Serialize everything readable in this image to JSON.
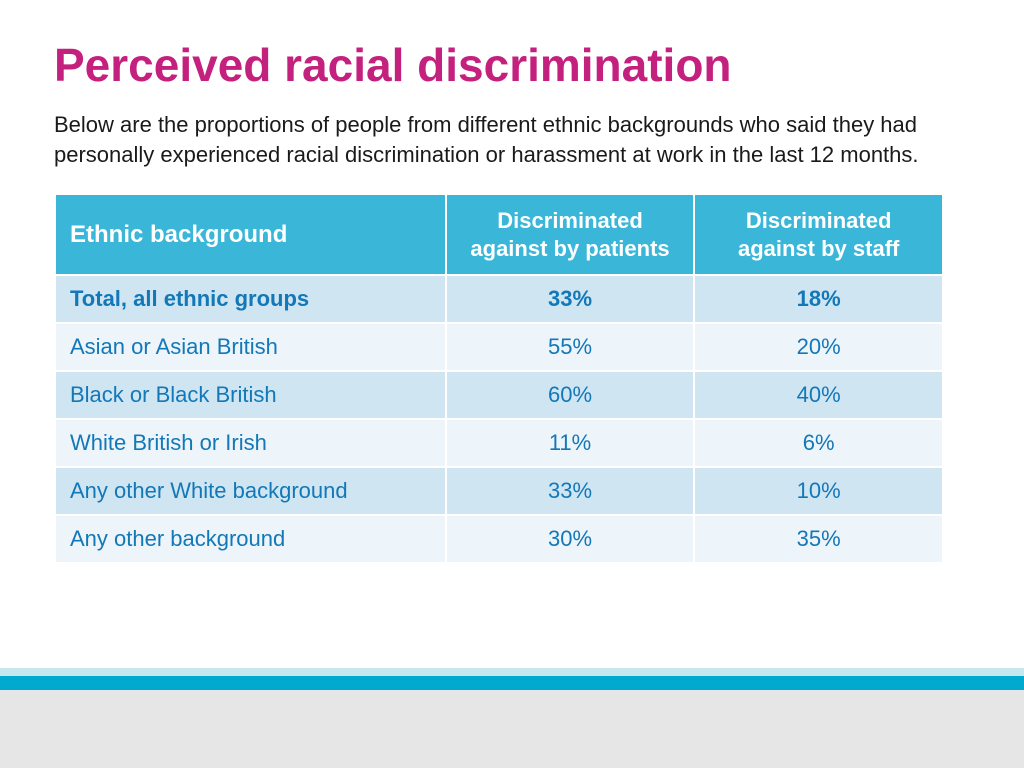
{
  "title": "Perceived racial discrimination",
  "subtitle": "Below are the proportions of people from different ethnic backgrounds who said they had personally experienced racial discrimination or harassment at work in the last 12 months.",
  "table": {
    "columns": {
      "c1": "Ethnic background",
      "c2": "Discriminated against by patients",
      "c3": "Discriminated against by staff"
    },
    "rows": [
      {
        "label": "Total, all ethnic groups",
        "patients": "33%",
        "staff": "18%",
        "total": true
      },
      {
        "label": "Asian or Asian British",
        "patients": "55%",
        "staff": "20%",
        "total": false
      },
      {
        "label": "Black or Black British",
        "patients": "60%",
        "staff": "40%",
        "total": false
      },
      {
        "label": "White British or Irish",
        "patients": "11%",
        "staff": "6%",
        "total": false
      },
      {
        "label": "Any other White background",
        "patients": "33%",
        "staff": "10%",
        "total": false
      },
      {
        "label": "Any other background",
        "patients": "30%",
        "staff": "35%",
        "total": false
      }
    ]
  },
  "colors": {
    "title": "#c4217f",
    "header_bg": "#39b6d8",
    "cell_text": "#1278b8",
    "row_even": "#cfe5f2",
    "row_odd": "#edf4fa",
    "stripe_light": "#c7e7ef",
    "stripe_dark": "#00aacf",
    "footer_grey": "#e6e6e6"
  }
}
